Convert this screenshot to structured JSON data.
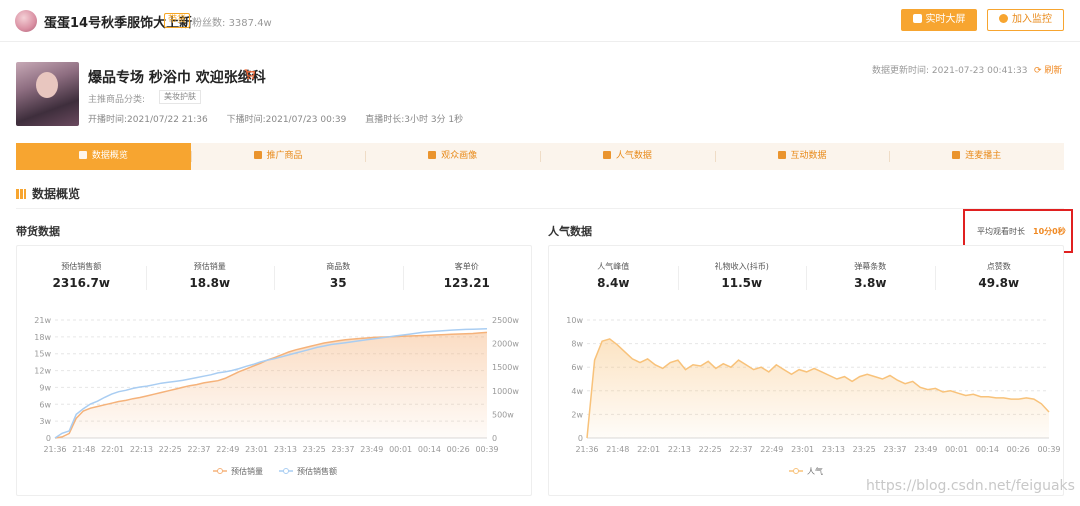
{
  "header": {
    "anchor_name": "蛋蛋14号秋季服饰大上新",
    "tag": "带货",
    "fans_label": "粉丝数:",
    "fans_value": "3387.4w",
    "btn_realtime": "实时大屏",
    "btn_monitor": "加入监控"
  },
  "live": {
    "title": "爆品专场 秒浴巾 欢迎张继科",
    "category_label": "主推商品分类:",
    "category_value": "美妆护肤",
    "start_label": "开播时间:",
    "start_value": "2021/07/22 21:36",
    "end_label": "下播时间:",
    "end_value": "2021/07/23 00:39",
    "duration_label": "直播时长:",
    "duration_value": "3小时 3分 1秒",
    "update_label": "数据更新时间:",
    "update_value": "2021-07-23 00:41:33",
    "refresh_label": "刷新"
  },
  "tabs": [
    "数据概览",
    "推广商品",
    "观众画像",
    "人气数据",
    "互动数据",
    "连麦播主"
  ],
  "section_title": "数据概览",
  "sales_panel": {
    "title": "带货数据",
    "stats": [
      {
        "label": "预估销售额",
        "value": "2316.7w"
      },
      {
        "label": "预估销量",
        "value": "18.8w"
      },
      {
        "label": "商品数",
        "value": "35"
      },
      {
        "label": "客单价",
        "value": "123.21"
      }
    ]
  },
  "pop_panel": {
    "title": "人气数据",
    "avg_watch_label": "平均观看时长",
    "avg_watch_value": "10分0秒",
    "stats": [
      {
        "label": "人气峰值",
        "value": "8.4w"
      },
      {
        "label": "礼物收入(抖币)",
        "value": "11.5w"
      },
      {
        "label": "弹幕条数",
        "value": "3.8w"
      },
      {
        "label": "点赞数",
        "value": "49.8w"
      }
    ]
  },
  "colors": {
    "accent": "#f7a530",
    "sales_qty_line": "#f5b27a",
    "sales_amount_line": "#a9cdf2",
    "popularity_line": "#f8c27a",
    "highlight_box": "#e02020"
  },
  "watermark": "https://blog.csdn.net/feiguaks",
  "chart_data": [
    {
      "type": "line",
      "x_tick_labels": [
        "21:36",
        "21:48",
        "22:01",
        "22:13",
        "22:25",
        "22:37",
        "22:49",
        "23:01",
        "23:13",
        "23:25",
        "23:37",
        "23:49",
        "00:01",
        "00:14",
        "00:26",
        "00:39"
      ],
      "y_tick_labels": [
        "0",
        "3w",
        "6w",
        "9w",
        "12w",
        "15w",
        "18w",
        "21w"
      ],
      "y2_tick_labels": [
        "0",
        "500w",
        "1000w",
        "1500w",
        "2000w",
        "2500w"
      ],
      "ylim": [
        0,
        21
      ],
      "y2lim": [
        0,
        2500
      ],
      "grid": true,
      "legend": "bottom",
      "x": [
        0,
        3,
        6,
        9,
        12,
        15,
        18,
        21,
        24,
        27,
        30,
        33,
        36,
        39,
        42,
        45,
        48,
        51,
        54,
        57,
        60,
        63,
        66,
        69,
        72,
        75,
        78,
        81,
        84,
        87,
        90,
        93,
        96,
        99,
        102,
        105,
        108,
        111,
        114,
        117,
        120,
        123,
        126,
        129,
        132,
        135,
        138,
        141,
        144,
        147,
        150,
        153,
        156,
        159,
        162,
        165,
        168,
        171,
        174,
        177,
        180,
        183
      ],
      "series": [
        {
          "name": "预估销量",
          "axis": "left",
          "area": true,
          "values": [
            0,
            0.2,
            0.8,
            3.5,
            4.8,
            5.3,
            5.6,
            5.9,
            6.2,
            6.5,
            6.7,
            7.0,
            7.2,
            7.5,
            7.8,
            8.1,
            8.4,
            8.7,
            9.0,
            9.3,
            9.5,
            9.8,
            10.0,
            10.2,
            10.6,
            11.2,
            11.8,
            12.3,
            12.8,
            13.3,
            13.9,
            14.3,
            14.8,
            15.3,
            15.7,
            16.0,
            16.3,
            16.6,
            16.9,
            17.1,
            17.3,
            17.5,
            17.6,
            17.7,
            17.8,
            17.9,
            17.95,
            18.0,
            18.05,
            18.1,
            18.15,
            18.2,
            18.25,
            18.3,
            18.35,
            18.4,
            18.45,
            18.5,
            18.55,
            18.6,
            18.7,
            18.8
          ]
        },
        {
          "name": "预估销售额",
          "axis": "right",
          "values": [
            0,
            100,
            150,
            500,
            620,
            720,
            780,
            860,
            930,
            980,
            1010,
            1050,
            1080,
            1100,
            1130,
            1160,
            1180,
            1200,
            1220,
            1250,
            1280,
            1310,
            1340,
            1380,
            1400,
            1430,
            1470,
            1520,
            1560,
            1610,
            1650,
            1680,
            1720,
            1760,
            1800,
            1840,
            1880,
            1920,
            1950,
            1980,
            2000,
            2020,
            2040,
            2060,
            2080,
            2100,
            2120,
            2140,
            2160,
            2180,
            2200,
            2220,
            2240,
            2255,
            2265,
            2275,
            2285,
            2295,
            2300,
            2305,
            2310,
            2316.7
          ]
        }
      ]
    },
    {
      "type": "area",
      "x_tick_labels": [
        "21:36",
        "21:48",
        "22:01",
        "22:13",
        "22:25",
        "22:37",
        "22:49",
        "23:01",
        "23:13",
        "23:25",
        "23:37",
        "23:49",
        "00:01",
        "00:14",
        "00:26",
        "00:39"
      ],
      "y_tick_labels": [
        "0",
        "2w",
        "4w",
        "6w",
        "8w",
        "10w"
      ],
      "ylim": [
        0,
        10
      ],
      "grid": true,
      "legend": "bottom",
      "x": [
        0,
        3,
        6,
        9,
        12,
        15,
        18,
        21,
        24,
        27,
        30,
        33,
        36,
        39,
        42,
        45,
        48,
        51,
        54,
        57,
        60,
        63,
        66,
        69,
        72,
        75,
        78,
        81,
        84,
        87,
        90,
        93,
        96,
        99,
        102,
        105,
        108,
        111,
        114,
        117,
        120,
        123,
        126,
        129,
        132,
        135,
        138,
        141,
        144,
        147,
        150,
        153,
        156,
        159,
        162,
        165,
        168,
        171,
        174,
        177,
        180,
        183
      ],
      "series": [
        {
          "name": "人气",
          "values": [
            0,
            6.6,
            8.2,
            8.4,
            7.9,
            7.3,
            6.7,
            6.4,
            6.7,
            6.2,
            5.9,
            6.4,
            6.6,
            5.8,
            6.2,
            6.1,
            6.5,
            5.9,
            6.3,
            6.0,
            6.6,
            6.2,
            5.8,
            6.0,
            5.6,
            6.2,
            5.8,
            5.4,
            5.8,
            5.6,
            5.9,
            5.6,
            5.3,
            5.0,
            5.2,
            4.8,
            5.2,
            5.4,
            5.2,
            5.0,
            5.3,
            4.9,
            4.6,
            4.8,
            4.3,
            4.1,
            4.2,
            3.9,
            4.0,
            3.8,
            3.6,
            3.7,
            3.5,
            3.5,
            3.4,
            3.4,
            3.3,
            3.3,
            3.4,
            3.3,
            2.9,
            2.2
          ]
        }
      ]
    }
  ]
}
